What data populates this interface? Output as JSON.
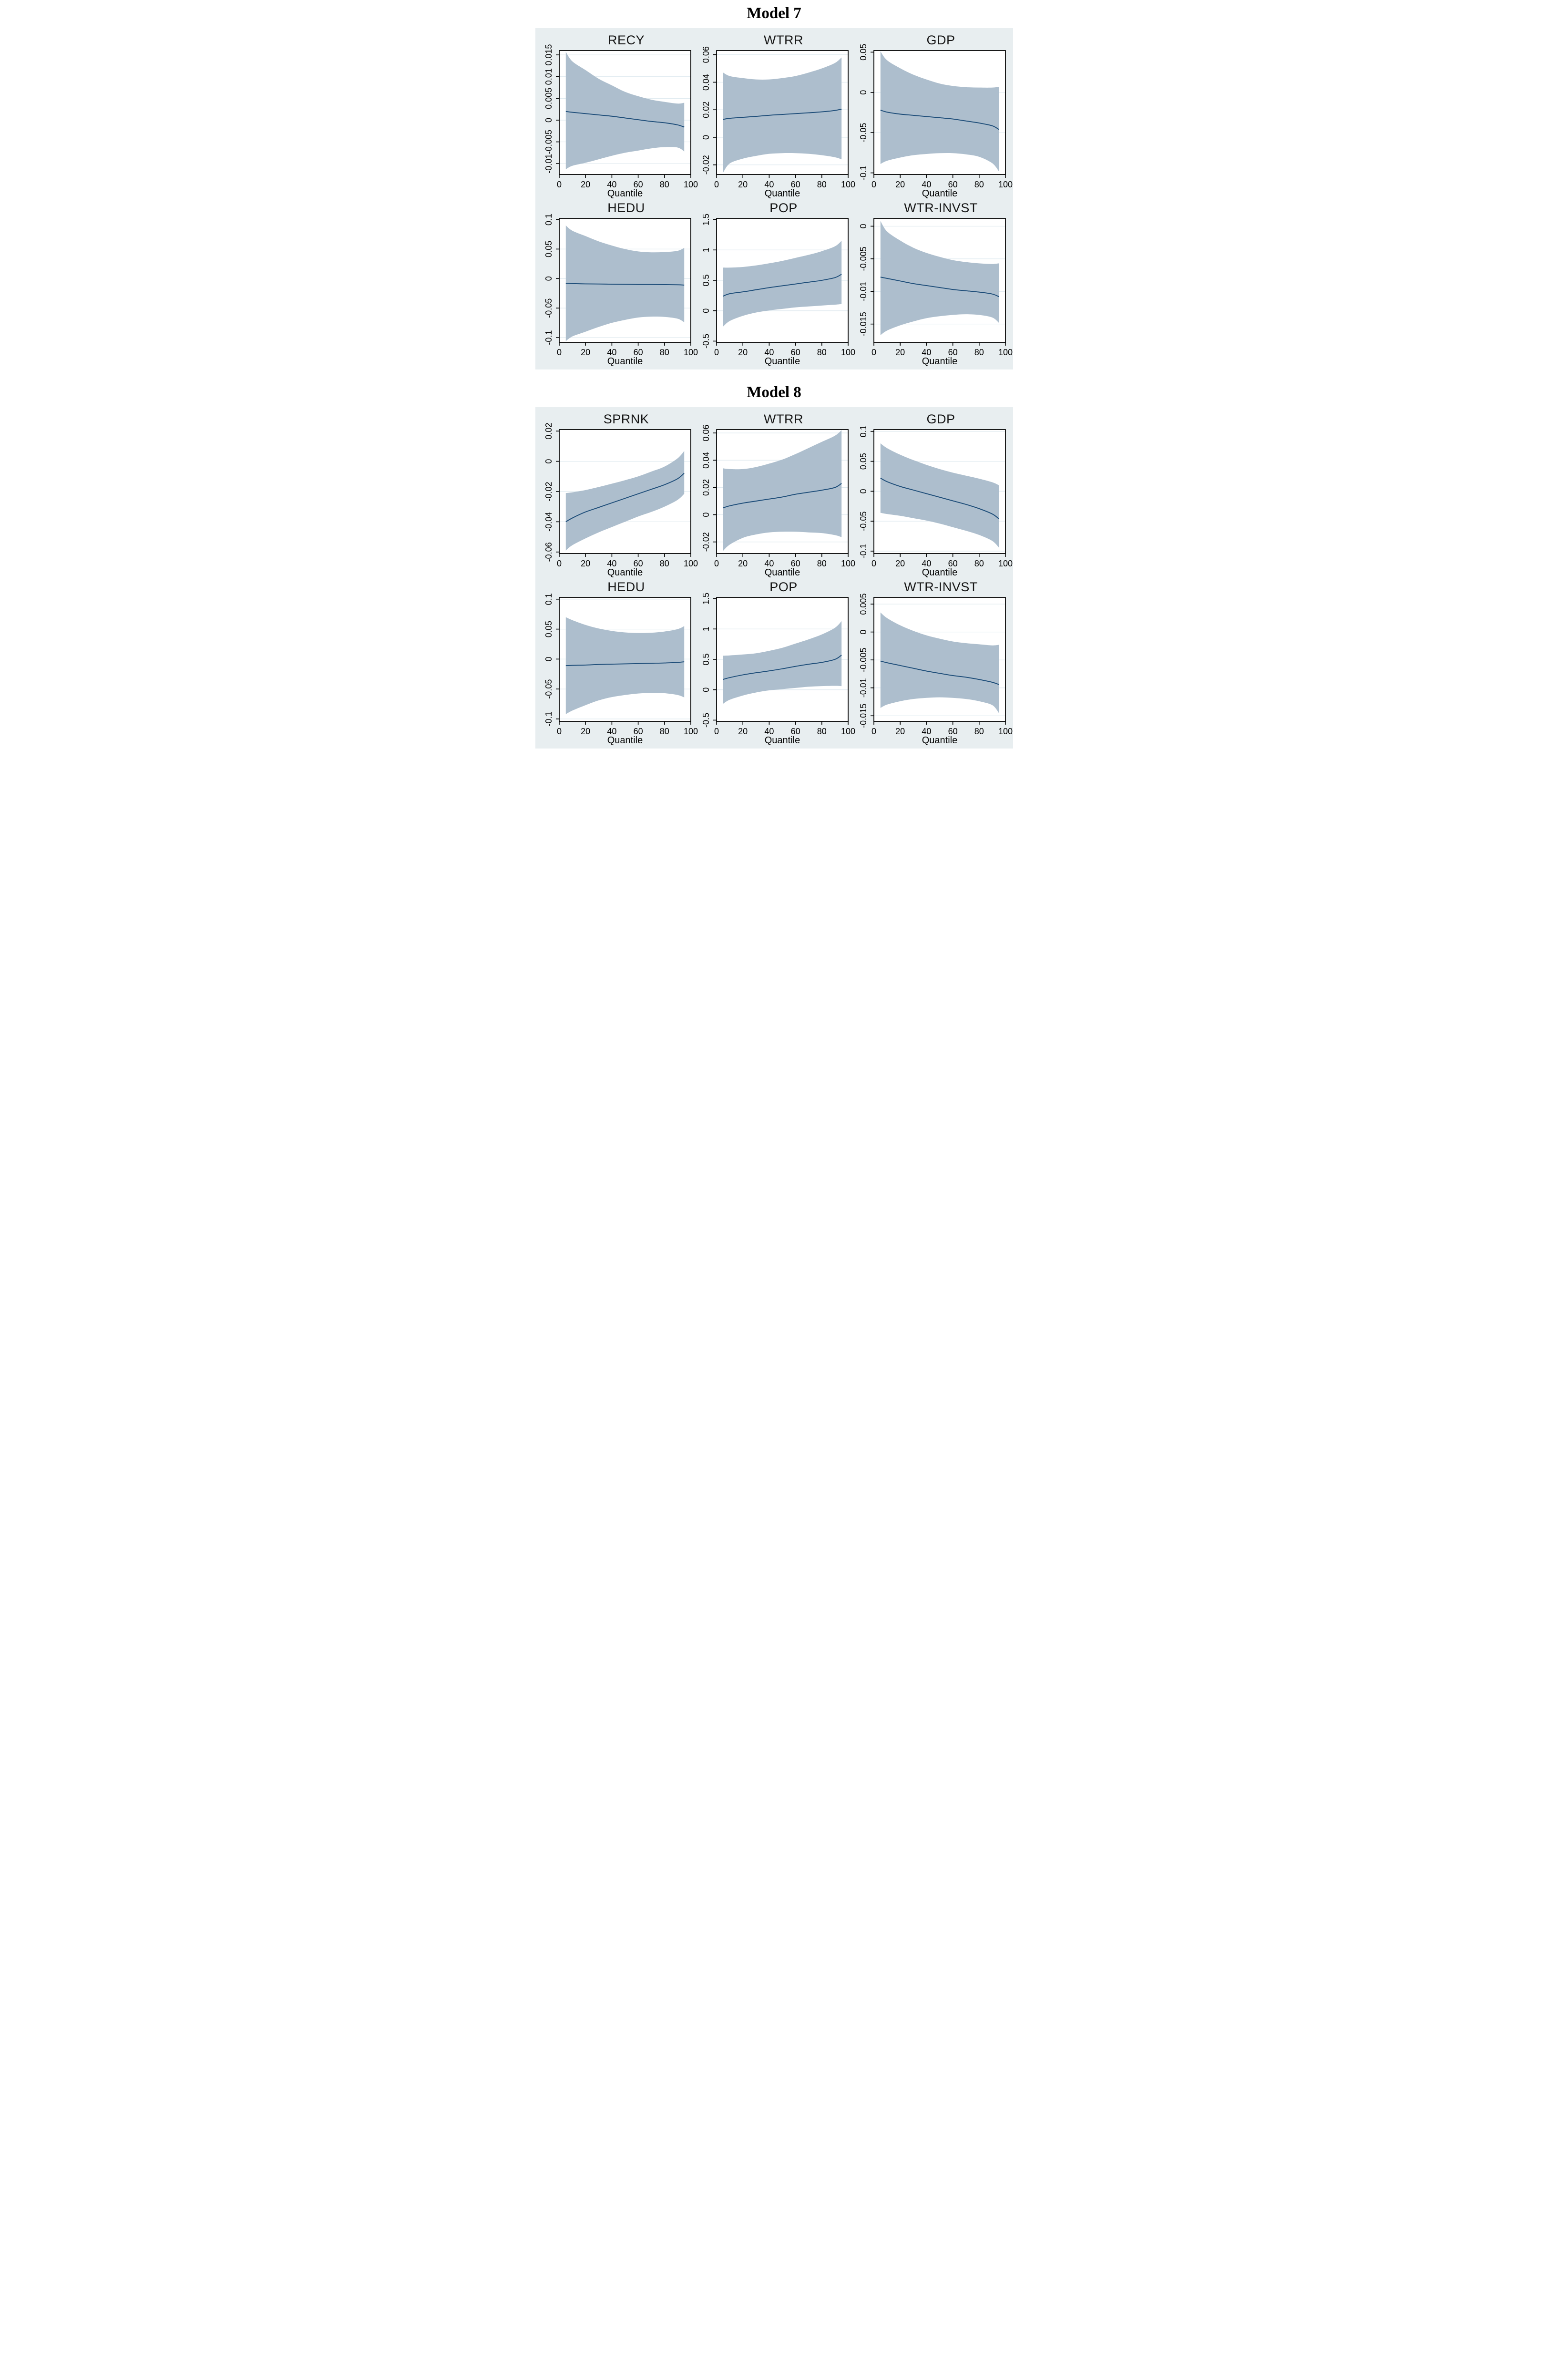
{
  "figure": {
    "panels": [
      {
        "title": "Model 7"
      },
      {
        "title": "Model 8"
      }
    ],
    "colors": {
      "page_bg": "#ffffff",
      "panel_bg": "#e8eef0",
      "plot_bg": "#ffffff",
      "band": "#adbecd",
      "line": "#1c4c78",
      "grid": "#dfeaef",
      "frame": "#000000",
      "text": "#161616"
    }
  },
  "chart_data": [
    {
      "panel": 0,
      "title": "RECY",
      "type": "area",
      "xlabel": "Quantile",
      "xlim": [
        0,
        100
      ],
      "xticks": [
        0,
        20,
        40,
        60,
        80,
        100
      ],
      "xtick_labels": [
        "0",
        "20",
        "40",
        "60",
        "80",
        "100"
      ],
      "ylim": [
        -0.0125,
        0.016
      ],
      "yticks": [
        0.015,
        0.01,
        0.005,
        0,
        -0.005,
        -0.01
      ],
      "ytick_labels": [
        "0.015",
        "0.01",
        "0.005",
        "0",
        "-0.005",
        "-0.01"
      ],
      "x": [
        5,
        10,
        20,
        30,
        40,
        50,
        60,
        70,
        80,
        90,
        95
      ],
      "series": {
        "estimate": [
          0.002,
          0.0018,
          0.0015,
          0.0012,
          0.0009,
          0.0005,
          0.0001,
          -0.0003,
          -0.0006,
          -0.0011,
          -0.0016
        ],
        "ci_upper": [
          0.0157,
          0.0135,
          0.0115,
          0.0095,
          0.008,
          0.0065,
          0.0055,
          0.0047,
          0.0042,
          0.0038,
          0.004
        ],
        "ci_lower": [
          -0.0113,
          -0.0105,
          -0.0098,
          -0.009,
          -0.0082,
          -0.0075,
          -0.007,
          -0.0065,
          -0.0062,
          -0.0063,
          -0.0072
        ]
      }
    },
    {
      "panel": 0,
      "title": "WTRR",
      "type": "area",
      "xlabel": "Quantile",
      "xlim": [
        0,
        100
      ],
      "xticks": [
        0,
        20,
        40,
        60,
        80,
        100
      ],
      "xtick_labels": [
        "0",
        "20",
        "40",
        "60",
        "80",
        "100"
      ],
      "ylim": [
        -0.027,
        0.063
      ],
      "yticks": [
        0.06,
        0.04,
        0.02,
        0,
        -0.02
      ],
      "ytick_labels": [
        "0.06",
        "0.04",
        "0.02",
        "0",
        "-0.02"
      ],
      "x": [
        5,
        10,
        20,
        30,
        40,
        50,
        60,
        70,
        80,
        90,
        95
      ],
      "series": {
        "estimate": [
          0.013,
          0.0138,
          0.0145,
          0.0152,
          0.016,
          0.0166,
          0.0172,
          0.0178,
          0.0185,
          0.0195,
          0.0205
        ],
        "ci_upper": [
          0.047,
          0.0445,
          0.043,
          0.042,
          0.042,
          0.043,
          0.0445,
          0.047,
          0.05,
          0.054,
          0.058
        ],
        "ci_lower": [
          -0.0255,
          -0.019,
          -0.0155,
          -0.0135,
          -0.012,
          -0.0115,
          -0.0115,
          -0.012,
          -0.013,
          -0.0145,
          -0.016
        ]
      }
    },
    {
      "panel": 0,
      "title": "GDP",
      "type": "area",
      "xlabel": "Quantile",
      "xlim": [
        0,
        100
      ],
      "xticks": [
        0,
        20,
        40,
        60,
        80,
        100
      ],
      "xtick_labels": [
        "0",
        "20",
        "40",
        "60",
        "80",
        "100"
      ],
      "ylim": [
        -0.102,
        0.052
      ],
      "yticks": [
        0.05,
        0,
        -0.05,
        -0.1
      ],
      "ytick_labels": [
        "0.05",
        "0",
        "-0.05",
        "-0.1"
      ],
      "x": [
        5,
        10,
        20,
        30,
        40,
        50,
        60,
        70,
        80,
        90,
        95
      ],
      "series": {
        "estimate": [
          -0.022,
          -0.0245,
          -0.027,
          -0.0285,
          -0.03,
          -0.0315,
          -0.033,
          -0.0355,
          -0.038,
          -0.0415,
          -0.046
        ],
        "ci_upper": [
          0.051,
          0.04,
          0.03,
          0.022,
          0.016,
          0.011,
          0.008,
          0.0065,
          0.006,
          0.006,
          0.007
        ],
        "ci_lower": [
          -0.089,
          -0.085,
          -0.081,
          -0.078,
          -0.0765,
          -0.0755,
          -0.0755,
          -0.077,
          -0.08,
          -0.088,
          -0.098
        ]
      }
    },
    {
      "panel": 0,
      "title": "HEDU",
      "type": "area",
      "xlabel": "Quantile",
      "xlim": [
        0,
        100
      ],
      "xticks": [
        0,
        20,
        40,
        60,
        80,
        100
      ],
      "xtick_labels": [
        "0",
        "20",
        "40",
        "60",
        "80",
        "100"
      ],
      "ylim": [
        -0.108,
        0.102
      ],
      "yticks": [
        0.1,
        0.05,
        0,
        -0.05,
        -0.1
      ],
      "ytick_labels": [
        "0.1",
        "0.05",
        "0",
        "-0.05",
        "-0.1"
      ],
      "x": [
        5,
        10,
        20,
        30,
        40,
        50,
        60,
        70,
        80,
        90,
        95
      ],
      "series": {
        "estimate": [
          -0.008,
          -0.0085,
          -0.009,
          -0.0092,
          -0.0095,
          -0.0097,
          -0.01,
          -0.01,
          -0.0102,
          -0.0105,
          -0.011
        ],
        "ci_upper": [
          0.09,
          0.081,
          0.072,
          0.063,
          0.056,
          0.05,
          0.046,
          0.0445,
          0.045,
          0.047,
          0.052
        ],
        "ci_lower": [
          -0.106,
          -0.098,
          -0.09,
          -0.082,
          -0.075,
          -0.07,
          -0.066,
          -0.0645,
          -0.065,
          -0.068,
          -0.074
        ]
      }
    },
    {
      "panel": 0,
      "title": "POP",
      "type": "area",
      "xlabel": "Quantile",
      "xlim": [
        0,
        100
      ],
      "xticks": [
        0,
        20,
        40,
        60,
        80,
        100
      ],
      "xtick_labels": [
        "0",
        "20",
        "40",
        "60",
        "80",
        "100"
      ],
      "ylim": [
        -0.52,
        1.52
      ],
      "yticks": [
        1.5,
        1,
        0.5,
        0,
        -0.5
      ],
      "ytick_labels": [
        "1.5",
        "1",
        "0.5",
        "0",
        "-0.5"
      ],
      "x": [
        5,
        10,
        20,
        30,
        40,
        50,
        60,
        70,
        80,
        90,
        95
      ],
      "series": {
        "estimate": [
          0.24,
          0.28,
          0.31,
          0.345,
          0.38,
          0.41,
          0.44,
          0.47,
          0.5,
          0.545,
          0.6
        ],
        "ci_upper": [
          0.71,
          0.71,
          0.72,
          0.745,
          0.78,
          0.82,
          0.87,
          0.92,
          0.98,
          1.06,
          1.15
        ],
        "ci_lower": [
          -0.26,
          -0.17,
          -0.085,
          -0.03,
          0.005,
          0.03,
          0.055,
          0.07,
          0.085,
          0.1,
          0.11
        ]
      }
    },
    {
      "panel": 0,
      "title": "WTR-INVST",
      "type": "area",
      "xlabel": "Quantile",
      "xlim": [
        0,
        100
      ],
      "xticks": [
        0,
        20,
        40,
        60,
        80,
        100
      ],
      "xtick_labels": [
        "0",
        "20",
        "40",
        "60",
        "80",
        "100"
      ],
      "ylim": [
        -0.0178,
        0.0012
      ],
      "yticks": [
        0,
        -0.005,
        -0.01,
        -0.015
      ],
      "ytick_labels": [
        "0",
        "-0.005",
        "-0.01",
        "-0.015"
      ],
      "x": [
        5,
        10,
        20,
        30,
        40,
        50,
        60,
        70,
        80,
        90,
        95
      ],
      "series": {
        "estimate": [
          -0.0078,
          -0.008,
          -0.0084,
          -0.0088,
          -0.0091,
          -0.0094,
          -0.0097,
          -0.0099,
          -0.0101,
          -0.0104,
          -0.0108
        ],
        "ci_upper": [
          0.0008,
          -0.0008,
          -0.0022,
          -0.0033,
          -0.0041,
          -0.0047,
          -0.0052,
          -0.0055,
          -0.0057,
          -0.0058,
          -0.0057
        ],
        "ci_lower": [
          -0.0167,
          -0.016,
          -0.0152,
          -0.0146,
          -0.0141,
          -0.0138,
          -0.0136,
          -0.0135,
          -0.0136,
          -0.014,
          -0.0148
        ]
      }
    },
    {
      "panel": 1,
      "title": "SPRNK",
      "type": "area",
      "xlabel": "Quantile",
      "xlim": [
        0,
        100
      ],
      "xticks": [
        0,
        20,
        40,
        60,
        80,
        100
      ],
      "xtick_labels": [
        "0",
        "20",
        "40",
        "60",
        "80",
        "100"
      ],
      "ylim": [
        -0.061,
        0.021
      ],
      "yticks": [
        0.02,
        0,
        -0.02,
        -0.04,
        -0.06
      ],
      "ytick_labels": [
        "0.02",
        "0",
        "-0.02",
        "-0.04",
        "-0.06"
      ],
      "x": [
        5,
        10,
        20,
        30,
        40,
        50,
        60,
        70,
        80,
        90,
        95
      ],
      "series": {
        "estimate": [
          -0.04,
          -0.0375,
          -0.0335,
          -0.0305,
          -0.0275,
          -0.0245,
          -0.0215,
          -0.0185,
          -0.0155,
          -0.0115,
          -0.0078
        ],
        "ci_upper": [
          -0.021,
          -0.0205,
          -0.019,
          -0.017,
          -0.0148,
          -0.0125,
          -0.01,
          -0.0068,
          -0.0035,
          0.002,
          0.0068
        ],
        "ci_lower": [
          -0.059,
          -0.0555,
          -0.051,
          -0.047,
          -0.0435,
          -0.04,
          -0.0365,
          -0.0335,
          -0.03,
          -0.0255,
          -0.0215
        ]
      }
    },
    {
      "panel": 1,
      "title": "WTRR",
      "type": "area",
      "xlabel": "Quantile",
      "xlim": [
        0,
        100
      ],
      "xticks": [
        0,
        20,
        40,
        60,
        80,
        100
      ],
      "xtick_labels": [
        "0",
        "20",
        "40",
        "60",
        "80",
        "100"
      ],
      "ylim": [
        -0.0285,
        0.0625
      ],
      "yticks": [
        0.06,
        0.04,
        0.02,
        0,
        -0.02
      ],
      "ytick_labels": [
        "0.06",
        "0.04",
        "0.02",
        "0",
        "-0.02"
      ],
      "x": [
        5,
        10,
        20,
        30,
        40,
        50,
        60,
        70,
        80,
        90,
        95
      ],
      "series": {
        "estimate": [
          0.005,
          0.0065,
          0.0085,
          0.01,
          0.0115,
          0.013,
          0.015,
          0.0165,
          0.018,
          0.02,
          0.023
        ],
        "ci_upper": [
          0.034,
          0.0335,
          0.0335,
          0.035,
          0.0375,
          0.0405,
          0.0445,
          0.049,
          0.0535,
          0.058,
          0.062
        ],
        "ci_lower": [
          -0.0265,
          -0.022,
          -0.017,
          -0.0145,
          -0.013,
          -0.0125,
          -0.0125,
          -0.013,
          -0.0135,
          -0.015,
          -0.0165
        ]
      }
    },
    {
      "panel": 1,
      "title": "GDP",
      "type": "area",
      "xlabel": "Quantile",
      "xlim": [
        0,
        100
      ],
      "xticks": [
        0,
        20,
        40,
        60,
        80,
        100
      ],
      "xtick_labels": [
        "0",
        "20",
        "40",
        "60",
        "80",
        "100"
      ],
      "ylim": [
        -0.104,
        0.103
      ],
      "yticks": [
        0.1,
        0.05,
        0,
        -0.05,
        -0.1
      ],
      "ytick_labels": [
        "0.1",
        "0.05",
        "0",
        "-0.05",
        "-0.1"
      ],
      "x": [
        5,
        10,
        20,
        30,
        40,
        50,
        60,
        70,
        80,
        90,
        95
      ],
      "series": {
        "estimate": [
          0.022,
          0.016,
          0.008,
          0.002,
          -0.004,
          -0.01,
          -0.016,
          -0.022,
          -0.029,
          -0.038,
          -0.046
        ],
        "ci_upper": [
          0.08,
          0.072,
          0.061,
          0.052,
          0.044,
          0.037,
          0.031,
          0.026,
          0.021,
          0.015,
          0.01
        ],
        "ci_lower": [
          -0.036,
          -0.038,
          -0.041,
          -0.045,
          -0.049,
          -0.054,
          -0.06,
          -0.066,
          -0.073,
          -0.083,
          -0.094
        ]
      }
    },
    {
      "panel": 1,
      "title": "HEDU",
      "type": "area",
      "xlabel": "Quantile",
      "xlim": [
        0,
        100
      ],
      "xticks": [
        0,
        20,
        40,
        60,
        80,
        100
      ],
      "xtick_labels": [
        "0",
        "20",
        "40",
        "60",
        "80",
        "100"
      ],
      "ylim": [
        -0.104,
        0.103
      ],
      "yticks": [
        0.1,
        0.05,
        0,
        -0.05,
        -0.1
      ],
      "ytick_labels": [
        "0.1",
        "0.05",
        "0",
        "-0.05",
        "-0.1"
      ],
      "x": [
        5,
        10,
        20,
        30,
        40,
        50,
        60,
        70,
        80,
        90,
        95
      ],
      "series": {
        "estimate": [
          -0.011,
          -0.0105,
          -0.01,
          -0.009,
          -0.0085,
          -0.008,
          -0.0075,
          -0.007,
          -0.0065,
          -0.0055,
          -0.0045
        ],
        "ci_upper": [
          0.07,
          0.065,
          0.057,
          0.051,
          0.047,
          0.0445,
          0.0435,
          0.044,
          0.046,
          0.05,
          0.055
        ],
        "ci_lower": [
          -0.092,
          -0.086,
          -0.077,
          -0.069,
          -0.0635,
          -0.06,
          -0.0575,
          -0.0565,
          -0.057,
          -0.06,
          -0.064
        ]
      }
    },
    {
      "panel": 1,
      "title": "POP",
      "type": "area",
      "xlabel": "Quantile",
      "xlim": [
        0,
        100
      ],
      "xticks": [
        0,
        20,
        40,
        60,
        80,
        100
      ],
      "xtick_labels": [
        "0",
        "20",
        "40",
        "60",
        "80",
        "100"
      ],
      "ylim": [
        -0.52,
        1.52
      ],
      "yticks": [
        1.5,
        1,
        0.5,
        0,
        -0.5
      ],
      "ytick_labels": [
        "1.5",
        "1",
        "0.5",
        "0",
        "-0.5"
      ],
      "x": [
        5,
        10,
        20,
        30,
        40,
        50,
        60,
        70,
        80,
        90,
        95
      ],
      "series": {
        "estimate": [
          0.17,
          0.2,
          0.245,
          0.28,
          0.31,
          0.345,
          0.385,
          0.42,
          0.45,
          0.5,
          0.57
        ],
        "ci_upper": [
          0.56,
          0.565,
          0.58,
          0.6,
          0.64,
          0.69,
          0.76,
          0.83,
          0.91,
          1.02,
          1.13
        ],
        "ci_lower": [
          -0.23,
          -0.165,
          -0.095,
          -0.045,
          -0.01,
          0.01,
          0.03,
          0.05,
          0.06,
          0.065,
          0.06
        ]
      }
    },
    {
      "panel": 1,
      "title": "WTR-INVST",
      "type": "area",
      "xlabel": "Quantile",
      "xlim": [
        0,
        100
      ],
      "xticks": [
        0,
        20,
        40,
        60,
        80,
        100
      ],
      "xtick_labels": [
        "0",
        "20",
        "40",
        "60",
        "80",
        "100"
      ],
      "ylim": [
        -0.016,
        0.0062
      ],
      "yticks": [
        0.005,
        0,
        -0.005,
        -0.01,
        -0.015
      ],
      "ytick_labels": [
        "0.005",
        "0",
        "-0.005",
        "-0.01",
        "-0.015"
      ],
      "x": [
        5,
        10,
        20,
        30,
        40,
        50,
        60,
        70,
        80,
        90,
        95
      ],
      "series": {
        "estimate": [
          -0.0052,
          -0.0055,
          -0.006,
          -0.0065,
          -0.007,
          -0.0074,
          -0.0078,
          -0.0081,
          -0.0085,
          -0.009,
          -0.0094
        ],
        "ci_upper": [
          0.0035,
          0.0025,
          0.0012,
          0.0002,
          -0.0006,
          -0.0012,
          -0.0017,
          -0.002,
          -0.0022,
          -0.0024,
          -0.0023
        ],
        "ci_lower": [
          -0.0136,
          -0.013,
          -0.0124,
          -0.012,
          -0.0118,
          -0.0117,
          -0.0118,
          -0.012,
          -0.0124,
          -0.0131,
          -0.0145
        ]
      }
    }
  ]
}
